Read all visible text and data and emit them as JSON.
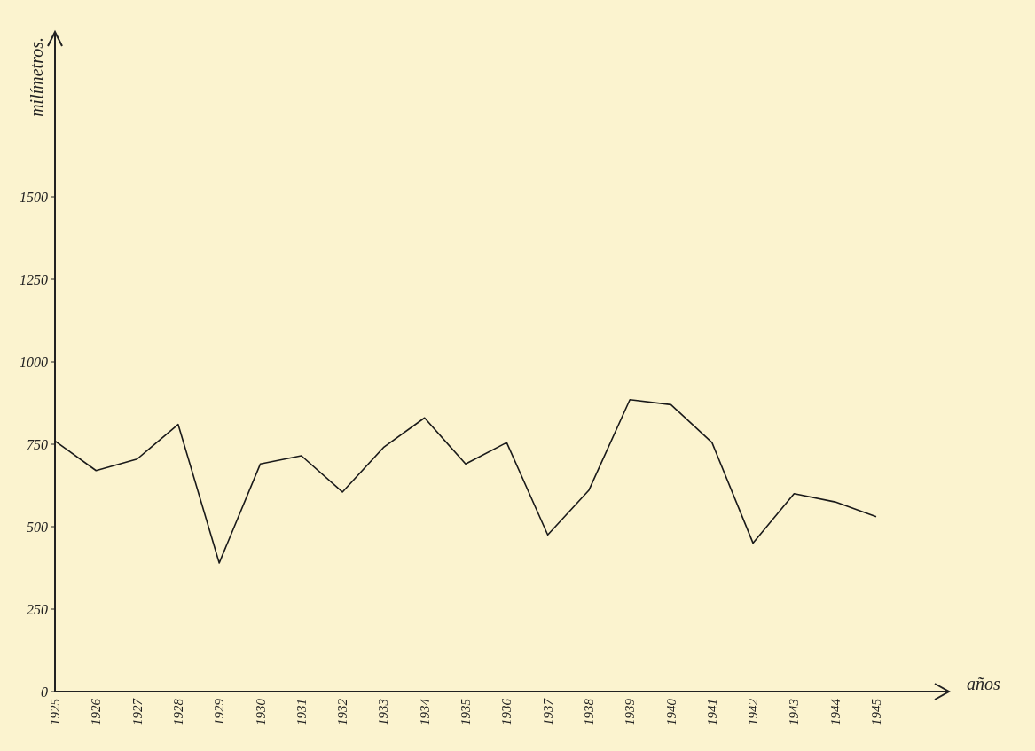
{
  "chart_data": {
    "type": "line",
    "xlabel": "años",
    "ylabel": "milímetros.",
    "categories": [
      "1925",
      "1926",
      "1927",
      "1928",
      "1929",
      "1930",
      "1931",
      "1932",
      "1933",
      "1934",
      "1935",
      "1936",
      "1937",
      "1938",
      "1939",
      "1940",
      "1941",
      "1942",
      "1943",
      "1944",
      "1945"
    ],
    "series": [
      {
        "color": "#1a1a1a",
        "values": [
          760,
          670,
          705,
          810,
          390,
          690,
          715,
          605,
          740,
          830,
          690,
          755,
          475,
          610,
          885,
          870,
          755,
          450,
          600,
          575,
          530
        ]
      }
    ],
    "ylim": [
      0,
      2000
    ],
    "yticks": [
      0,
      250,
      500,
      750,
      1000,
      1250,
      1500
    ],
    "grid": false,
    "marker": "none",
    "line_style": "solid"
  }
}
